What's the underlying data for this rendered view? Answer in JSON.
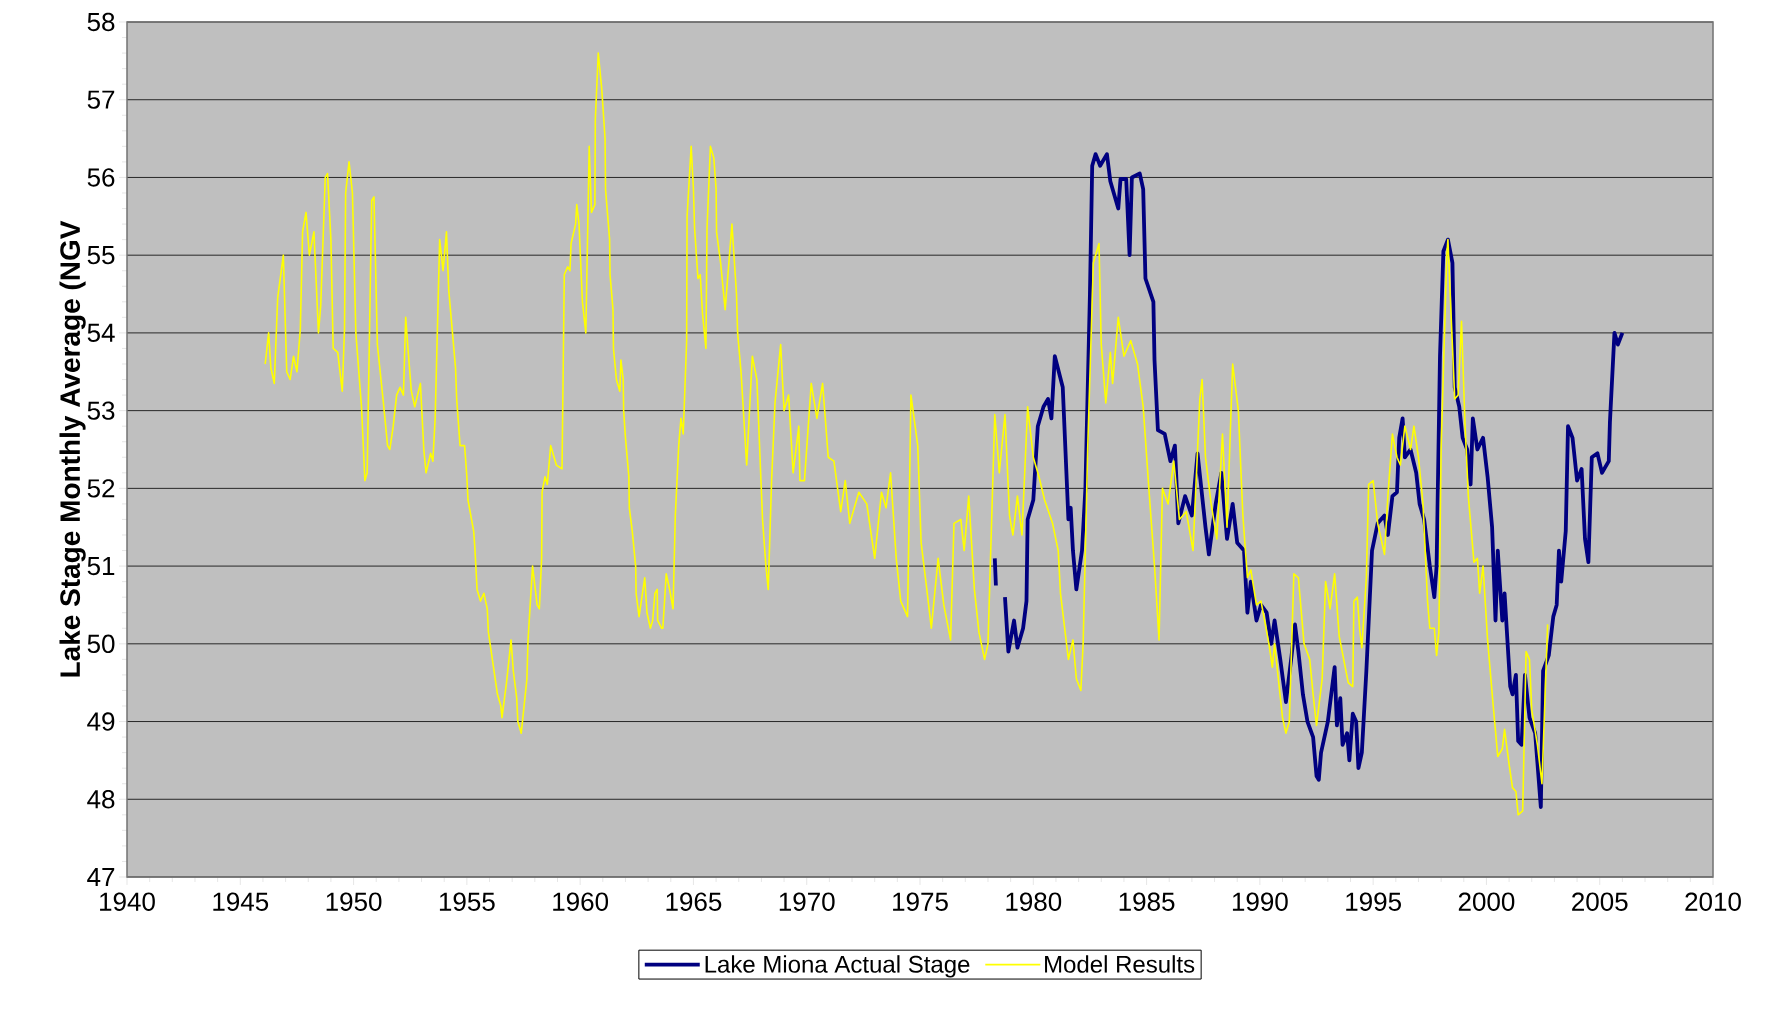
{
  "chart_data": {
    "type": "line",
    "ylabel": "Lake Stage Monthly Average (NGV",
    "xlim": [
      1940,
      2010
    ],
    "xticks": [
      1940,
      1945,
      1950,
      1955,
      1960,
      1965,
      1970,
      1975,
      1980,
      1985,
      1990,
      1995,
      2000,
      2005,
      2010
    ],
    "ylim": [
      47,
      58
    ],
    "yticks": [
      47,
      48,
      49,
      50,
      51,
      52,
      53,
      54,
      55,
      56,
      57,
      58
    ],
    "grid": "y",
    "legend": "bottom",
    "marker": "none",
    "line_style": "solid",
    "series": [
      {
        "name": "Lake Miona Actual Stage",
        "color": "#000080",
        "x": [
          1978.3,
          1978.35,
          1978.5,
          1978.75,
          1978.9,
          1979.15,
          1979.3,
          1979.55,
          1979.7,
          1979.75,
          1980.0,
          1980.2,
          1980.45,
          1980.65,
          1980.8,
          1980.95,
          1981.3,
          1981.55,
          1981.65,
          1981.75,
          1981.9,
          1982.15,
          1982.3,
          1982.5,
          1982.6,
          1982.75,
          1982.95,
          1983.25,
          1983.4,
          1983.75,
          1983.85,
          1984.1,
          1984.25,
          1984.35,
          1984.7,
          1984.85,
          1984.95,
          1985.3,
          1985.35,
          1985.5,
          1985.8,
          1986.05,
          1986.25,
          1986.4,
          1986.7,
          1987.0,
          1987.25,
          1987.6,
          1987.75,
          1988.05,
          1988.3,
          1988.55,
          1988.8,
          1989.0,
          1989.3,
          1989.45,
          1989.6,
          1989.85,
          1990.05,
          1990.3,
          1990.5,
          1990.65,
          1990.9,
          1991.15,
          1991.4,
          1991.55,
          1991.7,
          1991.9,
          1992.1,
          1992.35,
          1992.5,
          1992.6,
          1992.7,
          1993.0,
          1993.3,
          1993.4,
          1993.55,
          1993.65,
          1993.85,
          1993.95,
          1994.1,
          1994.25,
          1994.35,
          1994.5,
          1994.7,
          1994.95,
          1995.2,
          1995.5,
          1995.65,
          1995.85,
          1996.05,
          1996.15,
          1996.3,
          1996.4,
          1996.65,
          1996.9,
          1997.05,
          1997.25,
          1997.5,
          1997.7,
          1997.8,
          1997.95,
          1998.1,
          1998.3,
          1998.5,
          1998.6,
          1998.8,
          1998.95,
          1999.15,
          1999.3,
          1999.4,
          1999.6,
          1999.85,
          2000.05,
          2000.25,
          2000.4,
          2000.5,
          2000.7,
          2000.8,
          2001.05,
          2001.15,
          2001.3,
          2001.4,
          2001.55,
          2001.7,
          2001.9,
          2002.15,
          2002.4,
          2002.5,
          2002.75,
          2002.95,
          2003.1,
          2003.2,
          2003.3,
          2003.5,
          2003.6,
          2003.8,
          2004.0,
          2004.2,
          2004.35,
          2004.5,
          2004.65,
          2004.9,
          2005.1,
          2005.4,
          2005.45,
          2005.65,
          2005.8,
          2006.0
        ],
        "values": [
          51.1,
          50.75,
          null,
          50.6,
          49.9,
          50.3,
          49.95,
          50.2,
          50.55,
          51.6,
          51.85,
          52.8,
          53.05,
          53.15,
          52.9,
          53.7,
          53.3,
          51.6,
          51.75,
          51.2,
          50.7,
          51.2,
          52.0,
          54.5,
          56.15,
          56.3,
          56.15,
          56.3,
          55.95,
          55.6,
          55.98,
          55.98,
          55.0,
          56.0,
          56.05,
          55.85,
          54.7,
          54.4,
          53.65,
          52.75,
          52.7,
          52.35,
          52.55,
          51.55,
          51.9,
          51.65,
          52.45,
          51.5,
          51.15,
          51.8,
          52.2,
          51.35,
          51.8,
          51.3,
          51.2,
          50.4,
          50.8,
          50.3,
          50.5,
          50.4,
          50.0,
          50.3,
          49.8,
          49.25,
          49.85,
          50.25,
          49.9,
          49.35,
          49.0,
          48.8,
          48.3,
          48.25,
          48.6,
          49.0,
          49.7,
          48.95,
          49.3,
          48.7,
          48.85,
          48.5,
          49.1,
          49.0,
          48.4,
          48.6,
          49.65,
          51.2,
          51.55,
          51.65,
          51.4,
          51.9,
          51.95,
          52.65,
          52.9,
          52.4,
          52.5,
          52.2,
          51.8,
          51.6,
          51.0,
          50.6,
          51.0,
          53.7,
          55.05,
          55.2,
          54.9,
          53.3,
          53.05,
          52.65,
          52.5,
          52.05,
          52.9,
          52.5,
          52.65,
          52.15,
          51.5,
          50.3,
          51.2,
          50.3,
          50.65,
          49.45,
          49.35,
          49.6,
          48.75,
          48.7,
          49.6,
          49.05,
          48.85,
          47.9,
          49.65,
          49.85,
          50.35,
          50.5,
          51.2,
          50.8,
          51.45,
          52.8,
          52.65,
          52.1,
          52.25,
          51.35,
          51.05,
          52.4,
          52.45,
          52.2,
          52.35,
          52.85,
          54.0,
          53.85,
          54.0
        ]
      },
      {
        "name": "Model Results",
        "color": "#ffff00",
        "x": [
          1946.1,
          1946.25,
          1946.35,
          1946.5,
          1946.65,
          1946.9,
          1947.05,
          1947.2,
          1947.35,
          1947.5,
          1947.65,
          1947.75,
          1947.9,
          1948.05,
          1948.25,
          1948.45,
          1948.55,
          1948.75,
          1948.85,
          1949.0,
          1949.1,
          1949.3,
          1949.5,
          1949.6,
          1949.65,
          1949.8,
          1949.95,
          1950.1,
          1950.35,
          1950.5,
          1950.6,
          1950.8,
          1950.9,
          1951.05,
          1951.3,
          1951.5,
          1951.6,
          1951.75,
          1951.9,
          1952.05,
          1952.2,
          1952.3,
          1952.4,
          1952.55,
          1952.7,
          1952.95,
          1953.1,
          1953.2,
          1953.4,
          1953.5,
          1953.6,
          1953.8,
          1953.95,
          1954.1,
          1954.2,
          1954.5,
          1954.55,
          1954.7,
          1954.9,
          1955.0,
          1955.05,
          1955.3,
          1955.35,
          1955.45,
          1955.6,
          1955.75,
          1955.9,
          1955.95,
          1956.15,
          1956.35,
          1956.5,
          1956.55,
          1956.75,
          1956.95,
          1957.05,
          1957.2,
          1957.25,
          1957.4,
          1957.65,
          1957.7,
          1957.9,
          1958.1,
          1958.2,
          1958.3,
          1958.32,
          1958.45,
          1958.55,
          1958.7,
          1958.85,
          1958.95,
          1959.2,
          1959.3,
          1959.45,
          1959.55,
          1959.6,
          1959.8,
          1959.85,
          1959.95,
          1960.1,
          1960.25,
          1960.4,
          1960.5,
          1960.65,
          1960.67,
          1960.8,
          1960.95,
          1961.1,
          1961.12,
          1961.3,
          1961.32,
          1961.45,
          1961.47,
          1961.6,
          1961.75,
          1961.8,
          1961.9,
          1961.92,
          1962.0,
          1962.15,
          1962.17,
          1962.3,
          1962.45,
          1962.47,
          1962.6,
          1962.85,
          1962.95,
          1963.1,
          1963.2,
          1963.3,
          1963.4,
          1963.42,
          1963.6,
          1963.65,
          1963.8,
          1963.95,
          1964.1,
          1964.2,
          1964.35,
          1964.45,
          1964.55,
          1964.7,
          1964.72,
          1964.9,
          1965.0,
          1965.05,
          1965.2,
          1965.3,
          1965.4,
          1965.55,
          1965.6,
          1965.75,
          1965.9,
          1966.0,
          1966.02,
          1966.2,
          1966.4,
          1966.7,
          1966.9,
          1966.95,
          1967.1,
          1967.35,
          1967.6,
          1967.8,
          1968.05,
          1968.2,
          1968.3,
          1968.45,
          1968.6,
          1968.85,
          1969.0,
          1969.2,
          1969.4,
          1969.65,
          1969.7,
          1969.9,
          1970.2,
          1970.45,
          1970.7,
          1970.95,
          1971.2,
          1971.5,
          1971.7,
          1971.9,
          1972.3,
          1972.65,
          1973.0,
          1973.3,
          1973.5,
          1973.7,
          1973.95,
          1974.15,
          1974.45,
          1974.6,
          1974.9,
          1975.05,
          1975.3,
          1975.5,
          1975.8,
          1976.05,
          1976.35,
          1976.5,
          1976.8,
          1976.95,
          1977.15,
          1977.4,
          1977.6,
          1977.85,
          1978.0,
          1978.3,
          1978.5,
          1978.75,
          1978.95,
          1979.1,
          1979.3,
          1979.5,
          1979.75,
          1980.0,
          1980.25,
          1980.5,
          1980.85,
          1981.1,
          1981.2,
          1981.55,
          1981.75,
          1981.9,
          1982.1,
          1982.2,
          1982.4,
          1982.65,
          1982.9,
          1983.0,
          1983.2,
          1983.4,
          1983.5,
          1983.75,
          1984.0,
          1984.3,
          1984.6,
          1984.85,
          1985.1,
          1985.35,
          1985.55,
          1985.7,
          1985.95,
          1986.2,
          1986.45,
          1986.75,
          1987.05,
          1987.35,
          1987.45,
          1987.6,
          1987.85,
          1988.1,
          1988.35,
          1988.55,
          1988.8,
          1989.05,
          1989.25,
          1989.45,
          1989.6,
          1989.85,
          1990.05,
          1990.4,
          1990.55,
          1990.65,
          1991.0,
          1991.15,
          1991.3,
          1991.5,
          1991.7,
          1991.95,
          1992.2,
          1992.35,
          1992.5,
          1992.75,
          1992.9,
          1993.1,
          1993.3,
          1993.5,
          1993.7,
          1993.9,
          1994.1,
          1994.15,
          1994.3,
          1994.4,
          1994.5,
          1994.7,
          1994.8,
          1995.0,
          1995.2,
          1995.5,
          1995.65,
          1995.85,
          1996.05,
          1996.2,
          1996.4,
          1996.65,
          1996.8,
          1997.0,
          1997.2,
          1997.4,
          1997.5,
          1997.7,
          1997.8,
          1997.9,
          1998.0,
          1998.1,
          1998.25,
          1998.3,
          1998.4,
          1998.6,
          1998.75,
          1998.9,
          1999.05,
          1999.2,
          1999.45,
          1999.6,
          1999.7,
          1999.85,
          2000.05,
          2000.3,
          2000.5,
          2000.7,
          2000.8,
          2001.0,
          2001.15,
          2001.3,
          2001.4,
          2001.6,
          2001.75,
          2001.9,
          2002.0,
          2002.25,
          2002.45,
          2002.7
        ],
        "values": [
          53.6,
          54.0,
          53.55,
          53.35,
          54.45,
          55.0,
          53.5,
          53.4,
          53.7,
          53.5,
          54.05,
          55.3,
          55.55,
          55.0,
          55.3,
          54.0,
          54.35,
          56.0,
          56.05,
          55.2,
          53.8,
          53.75,
          53.25,
          54.05,
          55.8,
          56.2,
          55.8,
          54.0,
          53.05,
          52.1,
          52.2,
          55.7,
          55.75,
          53.85,
          53.15,
          52.55,
          52.5,
          52.8,
          53.2,
          53.3,
          53.2,
          54.2,
          53.8,
          53.25,
          53.05,
          53.35,
          52.5,
          52.2,
          52.45,
          52.35,
          52.9,
          55.2,
          54.8,
          55.3,
          54.55,
          53.55,
          53.15,
          52.55,
          52.55,
          52.15,
          51.85,
          51.45,
          51.25,
          50.7,
          50.55,
          50.65,
          50.45,
          50.15,
          49.75,
          49.35,
          49.2,
          49.05,
          49.5,
          50.05,
          49.65,
          49.3,
          49.0,
          48.85,
          49.55,
          50.05,
          51.0,
          50.5,
          50.45,
          51.1,
          51.95,
          52.15,
          52.05,
          52.55,
          52.4,
          52.3,
          52.25,
          54.75,
          54.85,
          54.8,
          55.15,
          55.4,
          55.65,
          55.4,
          54.4,
          54.0,
          56.4,
          55.55,
          55.65,
          56.75,
          57.6,
          57.15,
          56.5,
          55.85,
          55.2,
          54.75,
          54.3,
          53.8,
          53.4,
          53.25,
          53.65,
          53.4,
          53.0,
          52.65,
          52.15,
          51.75,
          51.45,
          51.0,
          50.65,
          50.35,
          50.85,
          50.4,
          50.2,
          50.3,
          50.65,
          50.7,
          50.3,
          50.2,
          50.2,
          50.9,
          50.7,
          50.45,
          51.65,
          52.55,
          52.9,
          52.7,
          53.9,
          55.5,
          56.4,
          55.85,
          55.35,
          54.7,
          54.75,
          54.25,
          53.8,
          55.35,
          56.4,
          56.25,
          55.85,
          55.3,
          54.9,
          54.3,
          55.4,
          54.5,
          54.0,
          53.5,
          52.3,
          53.7,
          53.4,
          51.6,
          51.0,
          50.7,
          52.1,
          53.1,
          53.85,
          53.0,
          53.2,
          52.2,
          52.8,
          52.1,
          52.1,
          53.35,
          52.9,
          53.35,
          52.4,
          52.35,
          51.7,
          52.1,
          51.55,
          51.95,
          51.8,
          51.1,
          51.95,
          51.75,
          52.2,
          51.1,
          50.55,
          50.35,
          53.2,
          52.55,
          51.3,
          50.7,
          50.2,
          51.1,
          50.5,
          50.05,
          51.55,
          51.6,
          51.2,
          51.9,
          50.7,
          50.15,
          49.8,
          50.0,
          52.95,
          52.2,
          52.95,
          51.65,
          51.4,
          51.9,
          51.4,
          53.05,
          52.4,
          52.15,
          51.85,
          51.55,
          51.2,
          50.65,
          49.8,
          50.05,
          49.55,
          49.4,
          50.0,
          52.5,
          54.9,
          55.15,
          53.85,
          53.1,
          53.75,
          53.35,
          54.2,
          53.7,
          53.9,
          53.6,
          53.05,
          52.0,
          51.0,
          50.05,
          52.0,
          51.8,
          52.35,
          51.6,
          51.7,
          51.2,
          53.15,
          53.4,
          52.4,
          51.8,
          51.35,
          52.7,
          51.5,
          53.6,
          53.0,
          51.65,
          50.85,
          50.95,
          50.5,
          50.55,
          50.0,
          49.7,
          50.0,
          49.05,
          48.85,
          49.0,
          50.9,
          50.85,
          50.0,
          49.8,
          49.35,
          48.95,
          49.55,
          50.8,
          50.45,
          50.9,
          50.1,
          49.8,
          49.5,
          49.45,
          50.55,
          50.6,
          50.2,
          49.95,
          50.85,
          52.05,
          52.1,
          51.55,
          51.15,
          51.9,
          52.7,
          52.4,
          52.3,
          52.8,
          52.5,
          52.8,
          52.4,
          51.8,
          50.55,
          50.2,
          50.2,
          49.85,
          50.15,
          52.5,
          53.5,
          55.0,
          55.2,
          54.5,
          53.15,
          53.2,
          54.15,
          52.85,
          51.9,
          51.05,
          51.1,
          50.65,
          51.0,
          50.05,
          49.2,
          48.55,
          48.65,
          48.9,
          48.45,
          48.15,
          48.1,
          47.8,
          47.85,
          49.9,
          49.8,
          49.15,
          48.7,
          48.2,
          50.25
        ]
      }
    ]
  }
}
